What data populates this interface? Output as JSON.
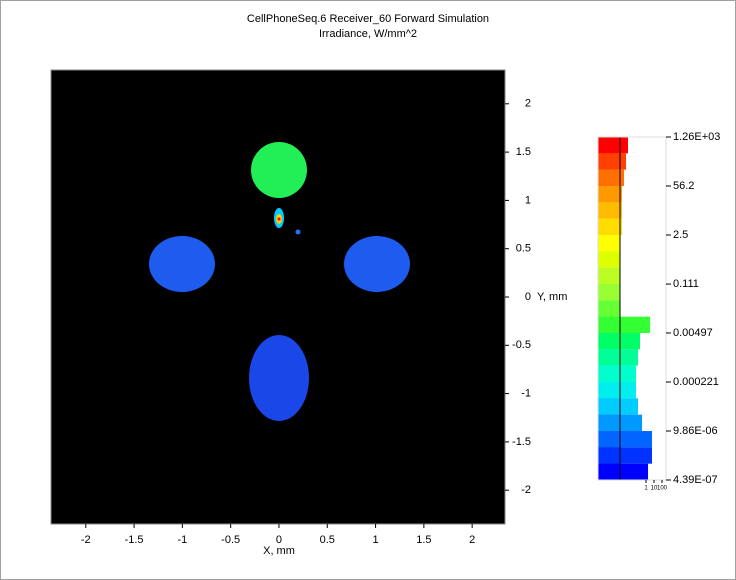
{
  "chart_data": {
    "type": "irradiance_map",
    "title": "CellPhoneSeq.6 Receiver_60 Forward Simulation",
    "subtitle": "Irradiance, W/mm^2",
    "x_label": "X, mm",
    "y_label": "Y, mm",
    "xlim": [
      -2.36,
      2.34
    ],
    "ylim": [
      -2.35,
      2.35
    ],
    "xticks": [
      -2,
      -1.5,
      -1,
      -0.5,
      0,
      0.5,
      1,
      1.5,
      2
    ],
    "yticks": [
      -2,
      -1.5,
      -1,
      -0.5,
      0,
      0.5,
      1,
      1.5,
      2
    ],
    "colorbar": {
      "log": true,
      "lim": [
        4.39e-07,
        1260
      ],
      "ticks": [
        {
          "value": 1260,
          "label": "1.26E+03"
        },
        56.2,
        2.5,
        0.111,
        0.00497,
        0.000221,
        {
          "value": 9.86e-06,
          "label": "9.86E-06"
        },
        {
          "value": 4.39e-07,
          "label": "4.39E-07"
        }
      ],
      "colors": [
        "#ff0000",
        "#ff4000",
        "#ff7000",
        "#ff9900",
        "#ffbb00",
        "#ffdd00",
        "#ffff00",
        "#ddff00",
        "#bbff22",
        "#99ff33",
        "#66ff33",
        "#33ff33",
        "#00ff66",
        "#00ff99",
        "#00ffcc",
        "#00eeee",
        "#00ccff",
        "#0099ff",
        "#0066ff",
        "#0033ff",
        "#0000ff"
      ],
      "histogram": [
        0.0056,
        0.0032,
        0.0018,
        0.001,
        0.001,
        0.001,
        0.00056,
        null,
        null,
        null,
        null,
        3.2,
        0.18,
        0.1,
        0.056,
        0.056,
        0.1,
        0.32,
        5.6,
        5.6,
        1.8
      ],
      "hist_log": true,
      "hist_lim": [
        1e-06,
        1000
      ],
      "hist_ticks": [
        1,
        10,
        100
      ]
    }
  }
}
